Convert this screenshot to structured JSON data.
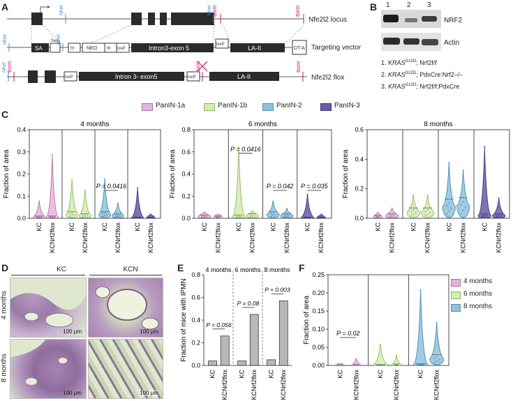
{
  "panel_labels": [
    "A",
    "B",
    "C",
    "D",
    "E",
    "F"
  ],
  "panel_a": {
    "rows": [
      {
        "label": "Nfe2l2 locus"
      },
      {
        "label": "Targeting vector"
      },
      {
        "label": "Nfe2l2 flox"
      }
    ],
    "sites": {
      "nhei": "NheI",
      "bstxi": "BstXI"
    },
    "boxes": {
      "sa": "SA",
      "seq": "Seq",
      "frt": "frt",
      "neo": "NEO",
      "loxp": "loxP",
      "intron_exon": "Intron3-exon 5",
      "la": "LA-II",
      "dta": "DT-A",
      "intron_exon_flox": "Intron 3- exon5"
    },
    "colors": {
      "nhei": "#3a8fd0",
      "bstxi": "#c2185b",
      "exon": "#2b2b2b"
    }
  },
  "panel_b": {
    "lanes": [
      "1",
      "2",
      "3"
    ],
    "bands": [
      "NRF2",
      "Actin"
    ],
    "legend": [
      {
        "num": "1.",
        "gene": "KRAS",
        "sup": "G12D",
        "rest": "; Nrf2f/f"
      },
      {
        "num": "2.",
        "gene": "KRAS",
        "sup": "G12D",
        "rest": "; PdxCre:Nrf2–/–"
      },
      {
        "num": "3.",
        "gene": "KRAS",
        "sup": "G12D",
        "rest": "; Nrf2f/f;PdxCre"
      }
    ]
  },
  "panel_c": {
    "legend": [
      {
        "name": "PanIN-1a",
        "color": "#e6b3e0"
      },
      {
        "name": "PanIN-1b",
        "color": "#d4ecb0"
      },
      {
        "name": "PanIN-2",
        "color": "#8fc3dd"
      },
      {
        "name": "PanIN-3",
        "color": "#6a5aa8"
      }
    ],
    "ylabel": "Fraction of area",
    "groups": [
      "KC",
      "KCNrf2flox"
    ]
  },
  "chart_data": [
    {
      "type": "violin",
      "title": "4 months",
      "ylabel": "Fraction of area",
      "ylim": [
        0,
        0.4
      ],
      "yticks": [
        "0.0",
        "0.1",
        "0.2",
        "0.3",
        "0.4"
      ],
      "categories": [
        "KC",
        "KCNrf2flox"
      ],
      "series": [
        {
          "name": "PanIN-1a",
          "values": [
            {
              "max": 0.08,
              "median": 0.01
            },
            {
              "max": 0.29,
              "median": 0.01
            }
          ]
        },
        {
          "name": "PanIN-1b",
          "values": [
            {
              "max": 0.18,
              "median": 0.03
            },
            {
              "max": 0.13,
              "median": 0.02
            }
          ]
        },
        {
          "name": "PanIN-2",
          "values": [
            {
              "max": 0.18,
              "median": 0.03
            },
            {
              "max": 0.07,
              "median": 0.02
            }
          ]
        },
        {
          "name": "PanIN-3",
          "values": [
            {
              "max": 0.14,
              "median": 0.005
            },
            {
              "max": 0.02,
              "median": 0.005
            }
          ]
        }
      ],
      "annotations": [
        {
          "series": "PanIN-2",
          "text": "P = 0.0416"
        }
      ]
    },
    {
      "type": "violin",
      "title": "6 months",
      "ylabel": "Fraction of area",
      "ylim": [
        0,
        0.8
      ],
      "yticks": [
        "0.0",
        "0.2",
        "0.4",
        "0.6",
        "0.8"
      ],
      "categories": [
        "KC",
        "KCNrf2flox"
      ],
      "series": [
        {
          "name": "PanIN-1a",
          "values": [
            {
              "max": 0.06,
              "median": 0.03
            },
            {
              "max": 0.04,
              "median": 0.02
            }
          ]
        },
        {
          "name": "PanIN-1b",
          "values": [
            {
              "max": 0.65,
              "median": 0.03
            },
            {
              "max": 0.07,
              "median": 0.04
            }
          ]
        },
        {
          "name": "PanIN-2",
          "values": [
            {
              "max": 0.16,
              "median": 0.06
            },
            {
              "max": 0.09,
              "median": 0.04
            }
          ]
        },
        {
          "name": "PanIN-3",
          "values": [
            {
              "max": 0.22,
              "median": 0.01
            },
            {
              "max": 0.04,
              "median": 0.01
            }
          ]
        }
      ],
      "annotations": [
        {
          "series": "PanIN-1b",
          "text": "P = 0.0416"
        },
        {
          "series": "PanIN-2",
          "text": "P = 0.042"
        },
        {
          "series": "PanIN-3",
          "text": "P = 0.035"
        }
      ]
    },
    {
      "type": "violin",
      "title": "8 months",
      "ylabel": "Fraction of area",
      "ylim": [
        0,
        0.6
      ],
      "yticks": [
        "0.0",
        "0.2",
        "0.4",
        "0.6"
      ],
      "categories": [
        "KC",
        "KCNrf2flox"
      ],
      "series": [
        {
          "name": "PanIN-1a",
          "values": [
            {
              "max": 0.04,
              "median": 0.02
            },
            {
              "max": 0.07,
              "median": 0.03
            }
          ]
        },
        {
          "name": "PanIN-1b",
          "values": [
            {
              "max": 0.16,
              "median": 0.07
            },
            {
              "max": 0.16,
              "median": 0.07
            }
          ]
        },
        {
          "name": "PanIN-2",
          "values": [
            {
              "max": 0.38,
              "median": 0.13
            },
            {
              "max": 0.33,
              "median": 0.14
            }
          ]
        },
        {
          "name": "PanIN-3",
          "values": [
            {
              "max": 0.49,
              "median": 0.03
            },
            {
              "max": 0.14,
              "median": 0.03
            }
          ]
        }
      ],
      "annotations": []
    },
    {
      "type": "bar",
      "ylabel": "Fraction of mice with IPMN",
      "ylim": [
        0,
        0.8
      ],
      "yticks": [
        "0.0",
        "0.2",
        "0.4",
        "0.6",
        "0.8"
      ],
      "groups": [
        {
          "label": "4 months",
          "categories": [
            "KC",
            "KCNrf2flox"
          ],
          "values": [
            0.04,
            0.26
          ],
          "p": "P = 0.056"
        },
        {
          "label": "6 months",
          "categories": [
            "KC",
            "KCNrf2flox"
          ],
          "values": [
            0.04,
            0.45
          ],
          "p": "P = 0.08"
        },
        {
          "label": "8 months",
          "categories": [
            "KC",
            "KCNrf2flox"
          ],
          "values": [
            0.05,
            0.57
          ],
          "p": "P = 0.003"
        }
      ]
    },
    {
      "type": "violin",
      "ylabel": "Fraction of area",
      "ylim": [
        0,
        0.25
      ],
      "yticks": [
        "0.00",
        "0.05",
        "0.10",
        "0.15",
        "0.20",
        "0.25"
      ],
      "legend": [
        {
          "name": "4 months",
          "color": "#e6b3e0"
        },
        {
          "name": "6 months",
          "color": "#d4ecb0"
        },
        {
          "name": "8 months",
          "color": "#8fc3dd"
        }
      ],
      "categories": [
        "KC",
        "KCNrf2flox"
      ],
      "series": [
        {
          "name": "4 months",
          "values": [
            {
              "max": 0.004,
              "median": 0.001
            },
            {
              "max": 0.02,
              "median": 0.002
            }
          ]
        },
        {
          "name": "6 months",
          "values": [
            {
              "max": 0.06,
              "median": 0.003
            },
            {
              "max": 0.03,
              "median": 0.004
            }
          ]
        },
        {
          "name": "8 months",
          "values": [
            {
              "max": 0.21,
              "median": 0.005
            },
            {
              "max": 0.12,
              "median": 0.03
            }
          ]
        }
      ],
      "annotations": [
        {
          "series": "4 months",
          "text": "P = 0.02"
        }
      ]
    }
  ],
  "panel_d": {
    "columns": [
      "KC",
      "KCN"
    ],
    "rows": [
      "4 months",
      "8 months"
    ],
    "scale": "100 μm"
  }
}
